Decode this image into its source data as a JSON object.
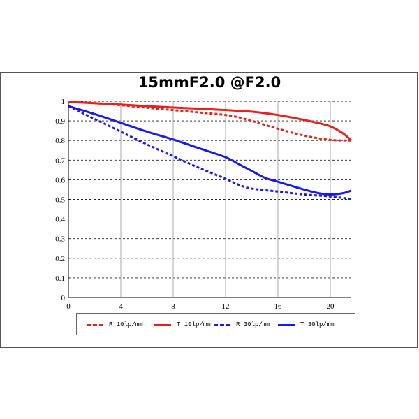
{
  "chart_data": {
    "type": "line",
    "title": "15mmF2.0 @F2.0",
    "xlim": [
      0,
      21.6
    ],
    "ylim": [
      0,
      1
    ],
    "x_ticks": [
      "0",
      "4",
      "8",
      "12",
      "16",
      "20"
    ],
    "y_ticks": [
      "0",
      "0.1",
      "0.2",
      "0.3",
      "0.4",
      "0.5",
      "0.6",
      "0.7",
      "0.8",
      "0.9",
      "1"
    ],
    "grid": {
      "horizontal": "dashed",
      "vertical": "solid"
    },
    "legend_position": "bottom",
    "series": [
      {
        "name": "R 10lp/mm",
        "color": "#e8201e",
        "dash": true,
        "x": [
          0,
          2,
          4,
          6,
          8,
          10,
          12,
          13,
          14,
          16,
          18,
          20,
          21.6
        ],
        "y": [
          0.997,
          0.99,
          0.98,
          0.967,
          0.955,
          0.943,
          0.93,
          0.918,
          0.9,
          0.86,
          0.825,
          0.803,
          0.8
        ]
      },
      {
        "name": "T 10lp/mm",
        "color": "#e8201e",
        "dash": false,
        "x": [
          0,
          2,
          4,
          6,
          8,
          10,
          12,
          14,
          16,
          18,
          19,
          20,
          21,
          21.6
        ],
        "y": [
          0.997,
          0.99,
          0.983,
          0.975,
          0.968,
          0.962,
          0.955,
          0.947,
          0.93,
          0.905,
          0.89,
          0.872,
          0.835,
          0.8
        ]
      },
      {
        "name": "R 30lp/mm",
        "color": "#1a1aee",
        "dash": true,
        "x": [
          0,
          2,
          4,
          6,
          8,
          10,
          12,
          13,
          14,
          16,
          18,
          20,
          21.6
        ],
        "y": [
          0.975,
          0.91,
          0.845,
          0.78,
          0.72,
          0.66,
          0.605,
          0.575,
          0.555,
          0.54,
          0.525,
          0.515,
          0.502
        ]
      },
      {
        "name": "T 30lp/mm",
        "color": "#1a1aee",
        "dash": false,
        "x": [
          0,
          2,
          4,
          6,
          8,
          10,
          12,
          13,
          14,
          15,
          16,
          18,
          19,
          20,
          21,
          21.6
        ],
        "y": [
          0.975,
          0.935,
          0.89,
          0.845,
          0.805,
          0.76,
          0.715,
          0.68,
          0.645,
          0.61,
          0.59,
          0.55,
          0.533,
          0.525,
          0.532,
          0.545
        ]
      }
    ]
  }
}
